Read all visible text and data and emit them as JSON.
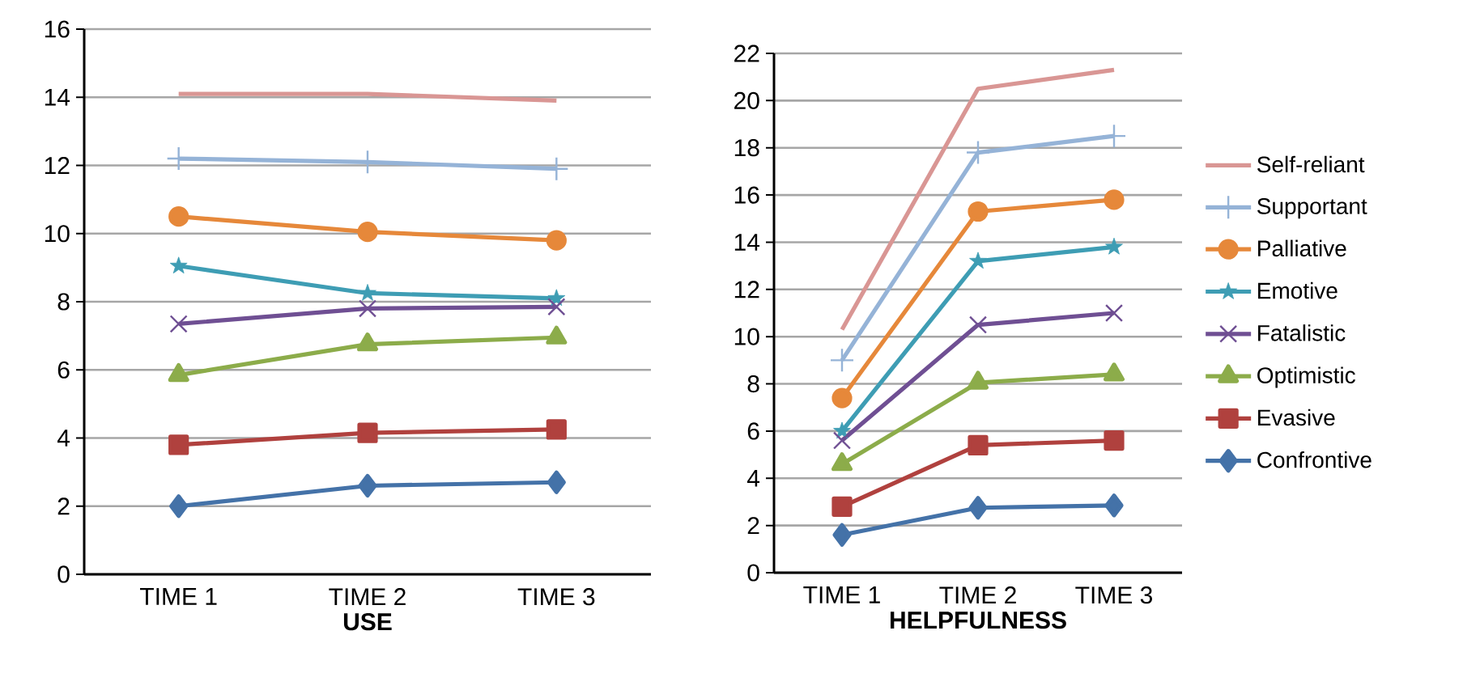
{
  "chart_data": [
    {
      "type": "line",
      "xlabel": "USE",
      "categories": [
        "TIME 1",
        "TIME 2",
        "TIME 3"
      ],
      "ylim": [
        0,
        16
      ],
      "yticks": [
        0,
        2,
        4,
        6,
        8,
        10,
        12,
        14,
        16
      ],
      "grid": "y",
      "legend": false,
      "series": [
        {
          "color": "#d99694",
          "marker": "none",
          "values": [
            14.1,
            14.1,
            13.9
          ]
        },
        {
          "color": "#95b3d7",
          "marker": "plus",
          "values": [
            12.2,
            12.1,
            11.9
          ]
        },
        {
          "color": "#e6883a",
          "marker": "circle",
          "values": [
            10.5,
            10.05,
            9.8
          ]
        },
        {
          "color": "#3e9db4",
          "marker": "star",
          "values": [
            9.05,
            8.25,
            8.1
          ]
        },
        {
          "color": "#6f4f93",
          "marker": "cross",
          "values": [
            7.35,
            7.8,
            7.85
          ]
        },
        {
          "color": "#8cac4a",
          "marker": "triangle",
          "values": [
            5.85,
            6.75,
            6.95
          ]
        },
        {
          "color": "#b0413e",
          "marker": "square",
          "values": [
            3.8,
            4.15,
            4.25
          ]
        },
        {
          "color": "#4472a8",
          "marker": "diamond",
          "values": [
            2.0,
            2.6,
            2.7
          ]
        }
      ]
    },
    {
      "type": "line",
      "xlabel": "HELPFULNESS",
      "categories": [
        "TIME 1",
        "TIME 2",
        "TIME 3"
      ],
      "ylim": [
        0,
        22
      ],
      "yticks": [
        0,
        2,
        4,
        6,
        8,
        10,
        12,
        14,
        16,
        18,
        20,
        22
      ],
      "grid": "y",
      "legend": "right",
      "series": [
        {
          "name": "Self-reliant",
          "color": "#d99694",
          "marker": "none",
          "values": [
            10.3,
            20.5,
            21.3
          ]
        },
        {
          "name": "Supportant",
          "color": "#95b3d7",
          "marker": "plus",
          "values": [
            9.0,
            17.8,
            18.5
          ]
        },
        {
          "name": "Palliative",
          "color": "#e6883a",
          "marker": "circle",
          "values": [
            7.4,
            15.3,
            15.8
          ]
        },
        {
          "name": "Emotive",
          "color": "#3e9db4",
          "marker": "star",
          "values": [
            6.0,
            13.2,
            13.8
          ]
        },
        {
          "name": "Fatalistic",
          "color": "#6f4f93",
          "marker": "cross",
          "values": [
            5.6,
            10.5,
            11.0
          ]
        },
        {
          "name": "Optimistic",
          "color": "#8cac4a",
          "marker": "triangle",
          "values": [
            4.6,
            8.05,
            8.4
          ]
        },
        {
          "name": "Evasive",
          "color": "#b0413e",
          "marker": "square",
          "values": [
            2.8,
            5.4,
            5.6
          ]
        },
        {
          "name": "Confrontive",
          "color": "#4472a8",
          "marker": "diamond",
          "values": [
            1.6,
            2.75,
            2.85
          ]
        }
      ]
    }
  ]
}
